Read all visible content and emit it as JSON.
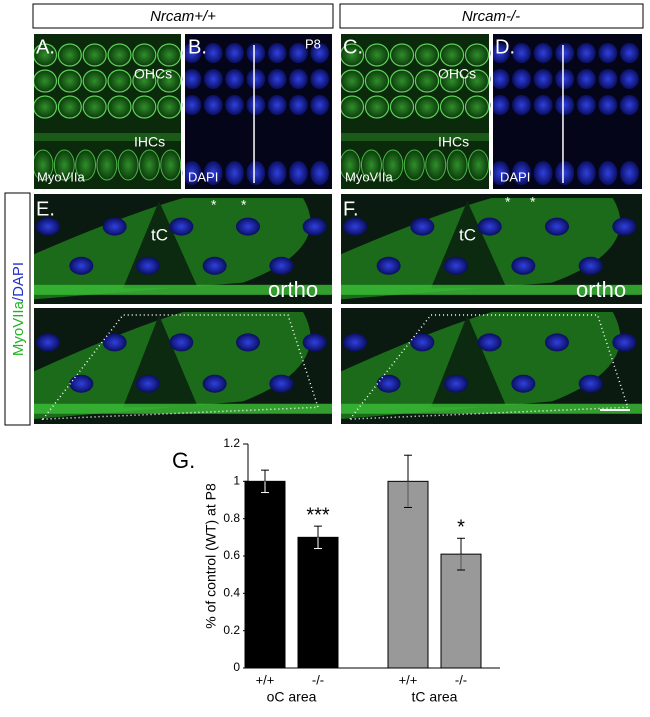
{
  "figure": {
    "headers": [
      "Nrcam+/+",
      "Nrcam-/-"
    ],
    "panels": [
      {
        "letter": "A.",
        "labels": [
          "OHCs",
          "IHCs",
          "MyoVIIa"
        ]
      },
      {
        "letter": "B.",
        "labels": [
          "P8",
          "DAPI"
        ]
      },
      {
        "letter": "C.",
        "labels": [
          "OHCs",
          "IHCs",
          "MyoVIIa"
        ]
      },
      {
        "letter": "D.",
        "labels": [
          "DAPI"
        ]
      },
      {
        "letter": "E.",
        "labels": [
          "tC",
          "*",
          "*",
          "ortho"
        ]
      },
      {
        "letter": "F.",
        "labels": [
          "tC",
          "*",
          "*",
          "ortho"
        ]
      }
    ],
    "side_label": [
      "MyoVIIa",
      "/DAPI"
    ],
    "chart_letter": "G."
  },
  "chart_data": {
    "type": "bar",
    "ylabel": "% of control (WT) at P8",
    "categories": [
      "+/+",
      "-/-",
      "+/+",
      "-/-"
    ],
    "groups": [
      "oC area",
      "tC area"
    ],
    "values": [
      1,
      0.7,
      1,
      0.61
    ],
    "errors": [
      0.06,
      0.06,
      0.14,
      0.085
    ],
    "colors": [
      "#000000",
      "#000000",
      "#999999",
      "#999999"
    ],
    "annotations": [
      null,
      "***",
      null,
      "*"
    ],
    "ylim": [
      0,
      1.2
    ],
    "yticks": [
      0,
      0.2,
      0.4,
      0.6,
      0.8,
      1,
      1.2
    ]
  }
}
